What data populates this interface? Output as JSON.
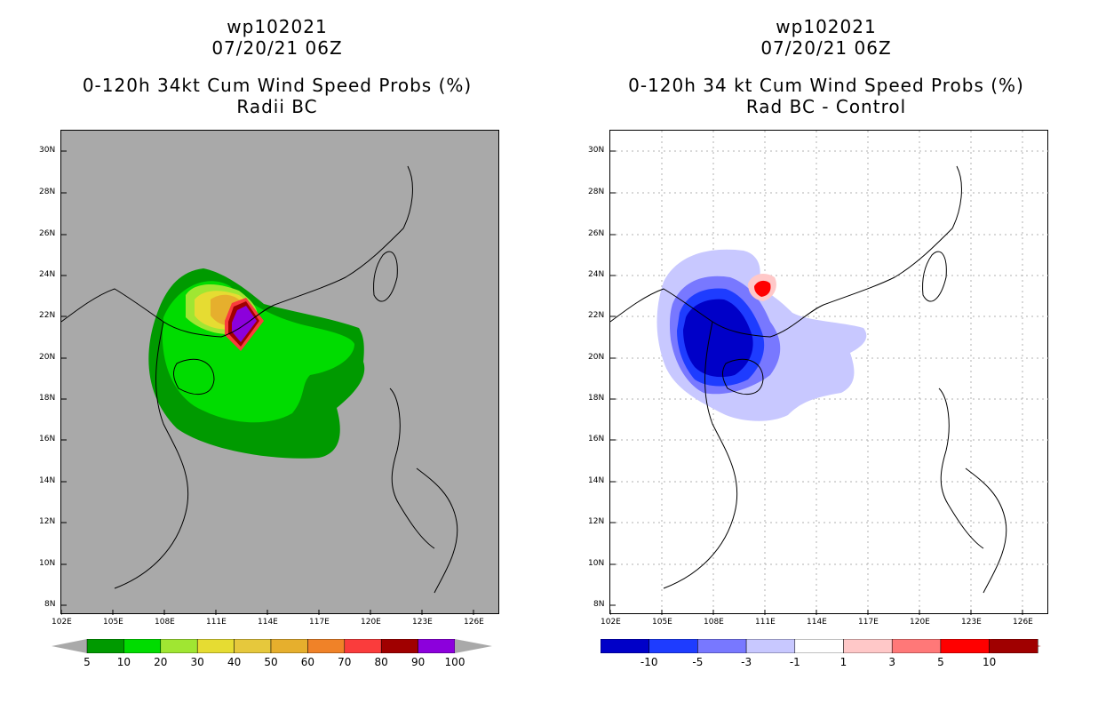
{
  "left": {
    "title": {
      "line1": "wp102021",
      "line2": "07/20/21 06Z",
      "line3": "0-120h 34kt Cum Wind Speed Probs (%)",
      "line4": "Radii BC"
    },
    "colorbar": {
      "colors": [
        "#009a00",
        "#00dc00",
        "#a0e632",
        "#e6dc32",
        "#e6c83c",
        "#e6af2d",
        "#f08228",
        "#fa3c3c",
        "#a00000",
        "#8c00dc"
      ],
      "labels": [
        "5",
        "10",
        "20",
        "30",
        "40",
        "50",
        "60",
        "70",
        "80",
        "90",
        "100"
      ]
    }
  },
  "right": {
    "title": {
      "line1": "wp102021",
      "line2": "07/20/21 06Z",
      "line3": "0-120h 34 kt Cum Wind Speed Probs (%)",
      "line4": "Rad BC - Control"
    },
    "colorbar": {
      "colors": [
        "#0000c8",
        "#1e3cff",
        "#7878ff",
        "#c8c8ff",
        "#ffffff",
        "#ffc8c8",
        "#ff7878",
        "#ff0000",
        "#a00000"
      ],
      "labels": [
        "-10",
        "-5",
        "-3",
        "-1",
        "1",
        "3",
        "5",
        "10"
      ]
    }
  },
  "axes": {
    "lat_labels": [
      "30N",
      "28N",
      "26N",
      "24N",
      "22N",
      "20N",
      "18N",
      "16N",
      "14N",
      "12N",
      "10N",
      "8N"
    ],
    "lon_labels": [
      "102E",
      "105E",
      "108E",
      "111E",
      "114E",
      "117E",
      "120E",
      "123E",
      "126E"
    ]
  }
}
